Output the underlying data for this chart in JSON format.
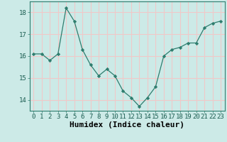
{
  "x": [
    0,
    1,
    2,
    3,
    4,
    5,
    6,
    7,
    8,
    9,
    10,
    11,
    12,
    13,
    14,
    15,
    16,
    17,
    18,
    19,
    20,
    21,
    22,
    23
  ],
  "y": [
    16.1,
    16.1,
    15.8,
    16.1,
    18.2,
    17.6,
    16.3,
    15.6,
    15.1,
    15.4,
    15.1,
    14.4,
    14.1,
    13.7,
    14.1,
    14.6,
    16.0,
    16.3,
    16.4,
    16.6,
    16.6,
    17.3,
    17.5,
    17.6
  ],
  "xlabel": "Humidex (Indice chaleur)",
  "ylim": [
    13.5,
    18.5
  ],
  "xlim": [
    -0.5,
    23.5
  ],
  "yticks": [
    14,
    15,
    16,
    17,
    18
  ],
  "xticks": [
    0,
    1,
    2,
    3,
    4,
    5,
    6,
    7,
    8,
    9,
    10,
    11,
    12,
    13,
    14,
    15,
    16,
    17,
    18,
    19,
    20,
    21,
    22,
    23
  ],
  "line_color": "#2e7d6e",
  "marker_color": "#2e7d6e",
  "bg_color": "#cceae7",
  "grid_color": "#f0c8c8",
  "tick_label_fontsize": 6.5,
  "xlabel_fontsize": 8
}
